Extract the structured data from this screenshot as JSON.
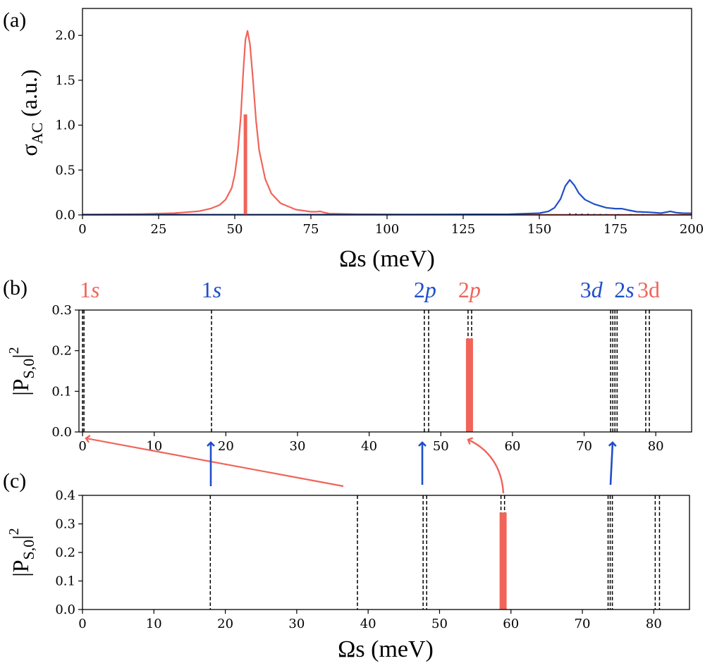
{
  "colors": {
    "red": "#f0645a",
    "blue": "#1f4fc8",
    "black": "#000000"
  },
  "chart_data": [
    {
      "id": "a",
      "type": "line",
      "panel_label": "(a)",
      "xlabel_main": "Ωs",
      "xlabel_unit": " (meV)",
      "ylabel_main": "σ",
      "ylabel_sub": "AC",
      "ylabel_unit": " (a.u.)",
      "xlim": [
        0,
        200
      ],
      "ylim": [
        0,
        2.3
      ],
      "xticks": [
        0,
        25,
        50,
        75,
        100,
        125,
        150,
        175,
        200
      ],
      "xtick_labels": [
        "0",
        "25",
        "50",
        "75",
        "100",
        "125",
        "150",
        "175",
        "200"
      ],
      "yticks": [
        0.0,
        0.5,
        1.0,
        1.5,
        2.0
      ],
      "ytick_labels": [
        "0.0",
        "0.5",
        "1.0",
        "1.5",
        "2.0"
      ],
      "series": [
        {
          "name": "red-spectrum",
          "color": "red",
          "x": [
            0,
            20,
            30,
            38,
            42,
            45,
            47,
            49,
            50,
            51,
            52,
            52.8,
            53.5,
            54.2,
            55,
            56,
            57,
            58,
            60,
            62,
            65,
            70,
            75,
            77,
            78,
            79,
            81,
            90,
            110,
            140,
            170,
            200
          ],
          "y": [
            0.005,
            0.01,
            0.02,
            0.04,
            0.07,
            0.11,
            0.17,
            0.3,
            0.45,
            0.7,
            1.1,
            1.6,
            1.95,
            2.05,
            1.9,
            1.5,
            1.05,
            0.72,
            0.4,
            0.24,
            0.13,
            0.06,
            0.035,
            0.035,
            0.04,
            0.03,
            0.015,
            0.008,
            0.004,
            0.002,
            0.001,
            0.001
          ]
        },
        {
          "name": "blue-spectrum",
          "color": "blue",
          "x": [
            0,
            100,
            140,
            150,
            153,
            155,
            157,
            158.5,
            160,
            161.5,
            163,
            165,
            168,
            172,
            175,
            177,
            179,
            182,
            186,
            190,
            193,
            195,
            197,
            200
          ],
          "y": [
            0.003,
            0.004,
            0.008,
            0.02,
            0.04,
            0.08,
            0.18,
            0.32,
            0.39,
            0.33,
            0.24,
            0.17,
            0.12,
            0.08,
            0.07,
            0.07,
            0.055,
            0.035,
            0.03,
            0.02,
            0.04,
            0.025,
            0.02,
            0.018
          ]
        }
      ],
      "sticks": [
        {
          "x": 53.5,
          "y": 1.12,
          "color": "red"
        },
        {
          "x": 160,
          "y": 0.02,
          "color": "blue"
        },
        {
          "x": 162,
          "y": 0.018,
          "color": "blue"
        },
        {
          "x": 164,
          "y": 0.015,
          "color": "blue"
        },
        {
          "x": 166,
          "y": 0.015,
          "color": "blue"
        },
        {
          "x": 168,
          "y": 0.012,
          "color": "blue"
        },
        {
          "x": 170,
          "y": 0.012,
          "color": "blue"
        },
        {
          "x": 172,
          "y": 0.01,
          "color": "blue"
        },
        {
          "x": 176,
          "y": 0.01,
          "color": "blue"
        },
        {
          "x": 180,
          "y": 0.01,
          "color": "blue"
        },
        {
          "x": 184,
          "y": 0.01,
          "color": "blue"
        }
      ]
    },
    {
      "id": "b",
      "type": "bar",
      "panel_label": "(b)",
      "ylabel_main": "|P",
      "ylabel_sub": "S,0",
      "ylabel_end": "|",
      "ylabel_sup": "2",
      "xlim": [
        -0.5,
        85
      ],
      "ylim": [
        0,
        0.3
      ],
      "xticks": [
        0,
        10,
        20,
        30,
        40,
        50,
        60,
        70,
        80
      ],
      "xtick_labels": [
        "0",
        "10",
        "20",
        "30",
        "40",
        "50",
        "60",
        "70",
        "80"
      ],
      "yticks": [
        0.0,
        0.1,
        0.2,
        0.3
      ],
      "ytick_labels": [
        "0.0",
        "0.1",
        "0.2",
        "0.3"
      ],
      "dashed_lines": [
        0.0,
        0.2,
        18.0,
        47.7,
        48.3,
        53.8,
        54.3,
        73.7,
        74.0,
        74.3,
        74.6,
        78.6,
        79.1
      ],
      "bars": [
        {
          "x": 54.0,
          "y": 0.23,
          "color": "red"
        }
      ],
      "state_labels": [
        {
          "num": "1",
          "letter": "s",
          "x": 1.0,
          "color": "red"
        },
        {
          "num": "1",
          "letter": "s",
          "x": 18.0,
          "color": "blue"
        },
        {
          "num": "2",
          "letter": "p",
          "x": 47.8,
          "color": "blue"
        },
        {
          "num": "2",
          "letter": "p",
          "x": 54.0,
          "color": "red"
        },
        {
          "num": "3",
          "letter": "d",
          "x": 71.0,
          "color": "blue"
        },
        {
          "num": "2",
          "letter": "s",
          "x": 75.6,
          "color": "blue"
        },
        {
          "num": "3d",
          "letter": "",
          "x": 79.0,
          "color": "red"
        }
      ]
    },
    {
      "id": "c",
      "type": "bar",
      "panel_label": "(c)",
      "xlabel_main": "Ωs",
      "xlabel_unit": " (meV)",
      "ylabel_main": "|P",
      "ylabel_sub": "S,0",
      "ylabel_end": "|",
      "ylabel_sup": "2",
      "xlim": [
        0,
        85
      ],
      "ylim": [
        0,
        0.4
      ],
      "xticks": [
        0,
        10,
        20,
        30,
        40,
        50,
        60,
        70,
        80
      ],
      "xtick_labels": [
        "0",
        "10",
        "20",
        "30",
        "40",
        "50",
        "60",
        "70",
        "80"
      ],
      "yticks": [
        0.0,
        0.1,
        0.2,
        0.3,
        0.4
      ],
      "ytick_labels": [
        "0.0",
        "0.1",
        "0.2",
        "0.3",
        "0.4"
      ],
      "dashed_lines": [
        17.9,
        38.5,
        47.7,
        48.2,
        58.6,
        59.1,
        73.6,
        73.9,
        74.2,
        80.2,
        80.8
      ],
      "bars": [
        {
          "x": 58.9,
          "y": 0.34,
          "color": "red"
        }
      ]
    }
  ]
}
